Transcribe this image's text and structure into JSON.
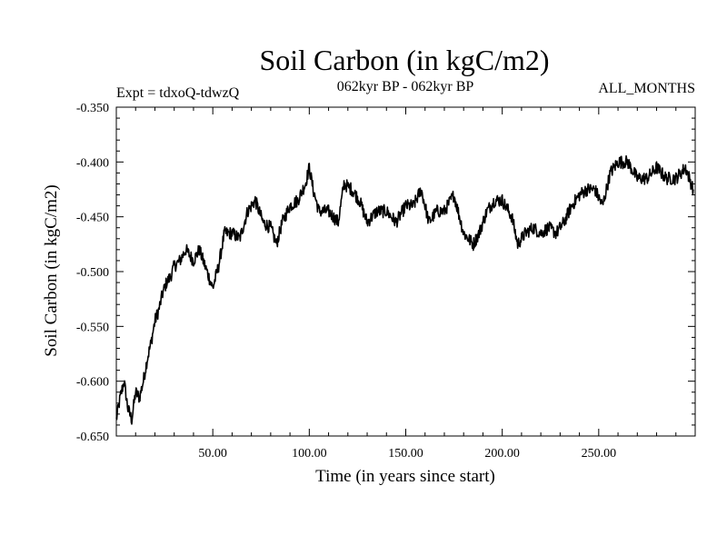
{
  "chart_data": {
    "type": "line",
    "title": "Soil Carbon (in kgC/m2)",
    "subtitle_left": "Expt = tdxoQ-tdwzQ",
    "subtitle_center": "062kyr BP - 062kyr BP",
    "subtitle_right": "ALL_MONTHS",
    "xlabel": "Time (in years since start)",
    "ylabel": "Soil Carbon (in kgC/m2)",
    "xlim": [
      0,
      300
    ],
    "ylim": [
      -0.65,
      -0.35
    ],
    "x_ticks": [
      50,
      100,
      150,
      200,
      250
    ],
    "x_tick_labels": [
      "50.00",
      "100.00",
      "150.00",
      "200.00",
      "250.00"
    ],
    "y_ticks": [
      -0.65,
      -0.6,
      -0.55,
      -0.5,
      -0.45,
      -0.4,
      -0.35
    ],
    "y_tick_labels": [
      "-0.650",
      "-0.600",
      "-0.550",
      "-0.500",
      "-0.450",
      "-0.400",
      "-0.350"
    ],
    "grid": false,
    "line_color": "#000000",
    "series": [
      {
        "x": [
          0,
          2,
          4,
          6,
          8,
          10,
          12,
          14,
          16,
          18,
          20,
          22,
          24,
          26,
          28,
          30,
          33,
          36,
          40,
          43,
          46,
          50,
          53,
          56,
          60,
          64,
          68,
          72,
          76,
          80,
          83,
          86,
          90,
          94,
          98,
          100,
          102,
          105,
          110,
          115,
          118,
          122,
          126,
          130,
          135,
          140,
          145,
          150,
          154,
          158,
          162,
          166,
          170,
          175,
          180,
          185,
          188,
          192,
          196,
          200,
          205,
          208,
          212,
          216,
          220,
          224,
          228,
          232,
          236,
          240,
          244,
          248,
          252,
          256,
          260,
          265,
          270,
          275,
          280,
          285,
          290,
          295,
          299
        ],
        "y": [
          -0.635,
          -0.615,
          -0.6,
          -0.625,
          -0.635,
          -0.61,
          -0.615,
          -0.6,
          -0.58,
          -0.565,
          -0.545,
          -0.535,
          -0.52,
          -0.51,
          -0.505,
          -0.495,
          -0.49,
          -0.48,
          -0.49,
          -0.48,
          -0.495,
          -0.515,
          -0.495,
          -0.465,
          -0.465,
          -0.47,
          -0.445,
          -0.435,
          -0.455,
          -0.46,
          -0.475,
          -0.455,
          -0.44,
          -0.435,
          -0.42,
          -0.405,
          -0.425,
          -0.445,
          -0.445,
          -0.455,
          -0.42,
          -0.425,
          -0.435,
          -0.455,
          -0.445,
          -0.445,
          -0.455,
          -0.44,
          -0.44,
          -0.425,
          -0.455,
          -0.445,
          -0.445,
          -0.43,
          -0.465,
          -0.475,
          -0.465,
          -0.445,
          -0.435,
          -0.435,
          -0.45,
          -0.475,
          -0.465,
          -0.46,
          -0.465,
          -0.46,
          -0.465,
          -0.455,
          -0.44,
          -0.43,
          -0.425,
          -0.425,
          -0.44,
          -0.41,
          -0.4,
          -0.4,
          -0.415,
          -0.415,
          -0.405,
          -0.415,
          -0.415,
          -0.405,
          -0.425
        ]
      }
    ]
  }
}
